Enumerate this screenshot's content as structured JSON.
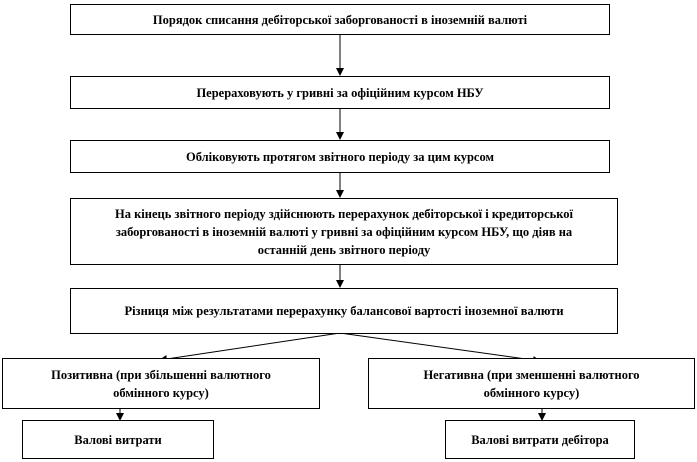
{
  "nodes": {
    "title": "Порядок списання дебіторської заборгованості в іноземній валюті",
    "step1": "Перераховують у гривні за офіційним курсом НБУ",
    "step2": "Обліковують протягом звітного періоду за цим курсом",
    "step3": "На кінець звітного періоду здійснюють перерахунок дебіторської і кредиторської заборгованості в іноземній валюті у гривні за офіційним курсом НБУ, що діяв на останній день звітного періоду",
    "step4": "Різниця між результатами перерахунку балансової вартості іноземної валюти",
    "positive": "Позитивна (при збільшенні валютного обмінного курсу)",
    "negative": "Негативна (при зменшенні валютного обмінного курсу)",
    "positive_result": "Валові витрати",
    "negative_result": "Валові витрати дебітора"
  }
}
